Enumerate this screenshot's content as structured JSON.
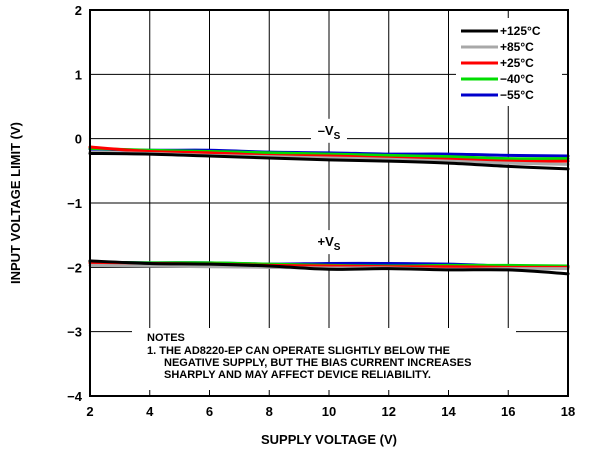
{
  "chart_data": {
    "type": "line",
    "xlabel": "SUPPLY VOLTAGE (V)",
    "ylabel": "INPUT VOLTAGE LIMIT (V)",
    "xlim": [
      2,
      18
    ],
    "ylim": [
      -4,
      2
    ],
    "xticks": [
      2,
      4,
      6,
      8,
      10,
      12,
      14,
      16,
      18
    ],
    "yticks": [
      -4,
      -3,
      -2,
      -1,
      0,
      1,
      2
    ],
    "xtick_labels": [
      "2",
      "4",
      "6",
      "8",
      "10",
      "12",
      "14",
      "16",
      "18"
    ],
    "ytick_labels": [
      "−4",
      "−3",
      "−2",
      "−1",
      "0",
      "1",
      "2"
    ],
    "grid": true,
    "legend_position": "top-right",
    "series": [
      {
        "name": "+125°C",
        "color": "#000000",
        "neg_supply": [
          [
            2,
            -0.23
          ],
          [
            4,
            -0.24
          ],
          [
            6,
            -0.27
          ],
          [
            8,
            -0.3
          ],
          [
            10,
            -0.33
          ],
          [
            12,
            -0.35
          ],
          [
            14,
            -0.38
          ],
          [
            16,
            -0.43
          ],
          [
            18,
            -0.47
          ]
        ],
        "pos_supply": [
          [
            2,
            -1.9
          ],
          [
            4,
            -1.94
          ],
          [
            6,
            -1.95
          ],
          [
            8,
            -1.98
          ],
          [
            10,
            -2.03
          ],
          [
            12,
            -2.02
          ],
          [
            14,
            -2.04
          ],
          [
            16,
            -2.04
          ],
          [
            18,
            -2.1
          ]
        ]
      },
      {
        "name": "+85°C",
        "color": "#a8a8a8",
        "neg_supply": [
          [
            2,
            -0.21
          ],
          [
            4,
            -0.23
          ],
          [
            6,
            -0.26
          ],
          [
            8,
            -0.28
          ],
          [
            10,
            -0.3
          ],
          [
            12,
            -0.32
          ],
          [
            14,
            -0.35
          ],
          [
            16,
            -0.38
          ],
          [
            18,
            -0.4
          ]
        ],
        "pos_supply": [
          [
            2,
            -1.97
          ],
          [
            4,
            -1.98
          ],
          [
            6,
            -1.99
          ],
          [
            8,
            -2.0
          ],
          [
            10,
            -2.01
          ],
          [
            12,
            -2.01
          ],
          [
            14,
            -2.03
          ],
          [
            16,
            -2.02
          ],
          [
            18,
            -2.02
          ]
        ]
      },
      {
        "name": "+25°C",
        "color": "#ff0000",
        "neg_supply": [
          [
            2,
            -0.13
          ],
          [
            4,
            -0.2
          ],
          [
            6,
            -0.22
          ],
          [
            8,
            -0.26
          ],
          [
            10,
            -0.27
          ],
          [
            12,
            -0.3
          ],
          [
            14,
            -0.32
          ],
          [
            16,
            -0.35
          ],
          [
            18,
            -0.35
          ]
        ],
        "pos_supply": [
          [
            2,
            -1.93
          ],
          [
            4,
            -1.94
          ],
          [
            6,
            -1.95
          ],
          [
            8,
            -1.97
          ],
          [
            10,
            -1.98
          ],
          [
            12,
            -1.99
          ],
          [
            14,
            -1.99
          ],
          [
            16,
            -2.0
          ],
          [
            18,
            -2.0
          ]
        ]
      },
      {
        "name": "−40°C",
        "color": "#00dd00",
        "neg_supply": [
          [
            2,
            -0.15
          ],
          [
            4,
            -0.18
          ],
          [
            6,
            -0.2
          ],
          [
            8,
            -0.22
          ],
          [
            10,
            -0.24
          ],
          [
            12,
            -0.26
          ],
          [
            14,
            -0.28
          ],
          [
            16,
            -0.31
          ],
          [
            18,
            -0.31
          ]
        ],
        "pos_supply": [
          [
            2,
            -1.92
          ],
          [
            4,
            -1.93
          ],
          [
            6,
            -1.93
          ],
          [
            8,
            -1.95
          ],
          [
            10,
            -1.97
          ],
          [
            12,
            -1.98
          ],
          [
            14,
            -1.97
          ],
          [
            16,
            -1.97
          ],
          [
            18,
            -1.98
          ]
        ]
      },
      {
        "name": "−55°C",
        "color": "#0000cc",
        "neg_supply": [
          [
            2,
            -0.16
          ],
          [
            4,
            -0.18
          ],
          [
            6,
            -0.18
          ],
          [
            8,
            -0.21
          ],
          [
            10,
            -0.22
          ],
          [
            12,
            -0.24
          ],
          [
            14,
            -0.24
          ],
          [
            16,
            -0.26
          ],
          [
            18,
            -0.27
          ]
        ],
        "pos_supply": [
          [
            2,
            -1.92
          ],
          [
            4,
            -1.93
          ],
          [
            6,
            -1.93
          ],
          [
            8,
            -1.95
          ],
          [
            10,
            -1.94
          ],
          [
            12,
            -1.94
          ],
          [
            14,
            -1.95
          ],
          [
            16,
            -1.98
          ],
          [
            18,
            -1.99
          ]
        ]
      }
    ],
    "annotations": [
      {
        "id": "neg",
        "base": "–V",
        "sub": "S",
        "x": 10,
        "y": 0.06
      },
      {
        "id": "pos",
        "base": "+V",
        "sub": "S",
        "x": 10,
        "y": -1.67
      }
    ],
    "notes": {
      "heading": "NOTES",
      "lines": [
        "1. THE AD8220-EP CAN OPERATE SLIGHTLY BELOW THE",
        "NEGATIVE SUPPLY, BUT THE BIAS CURRENT INCREASES",
        "SHARPLY AND MAY AFFECT DEVICE RELIABILITY."
      ]
    }
  }
}
